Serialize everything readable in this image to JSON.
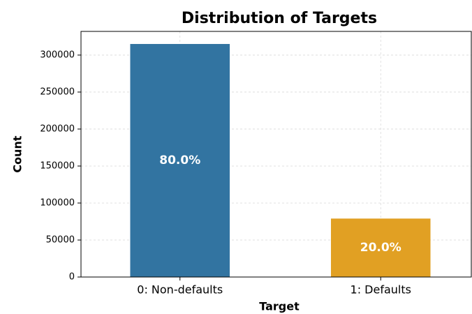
{
  "chart_data": {
    "type": "bar",
    "title": "Distribution of Targets",
    "xlabel": "Target",
    "ylabel": "Count",
    "categories": [
      "0: Non-defaults",
      "1: Defaults"
    ],
    "values": [
      315000,
      79000
    ],
    "colors": [
      "#3274a1",
      "#e1a023"
    ],
    "annotations": [
      "80.0%",
      "20.0%"
    ],
    "ylim": [
      0,
      332000
    ],
    "yticks": [
      0,
      50000,
      100000,
      150000,
      200000,
      250000,
      300000
    ],
    "grid": true
  }
}
